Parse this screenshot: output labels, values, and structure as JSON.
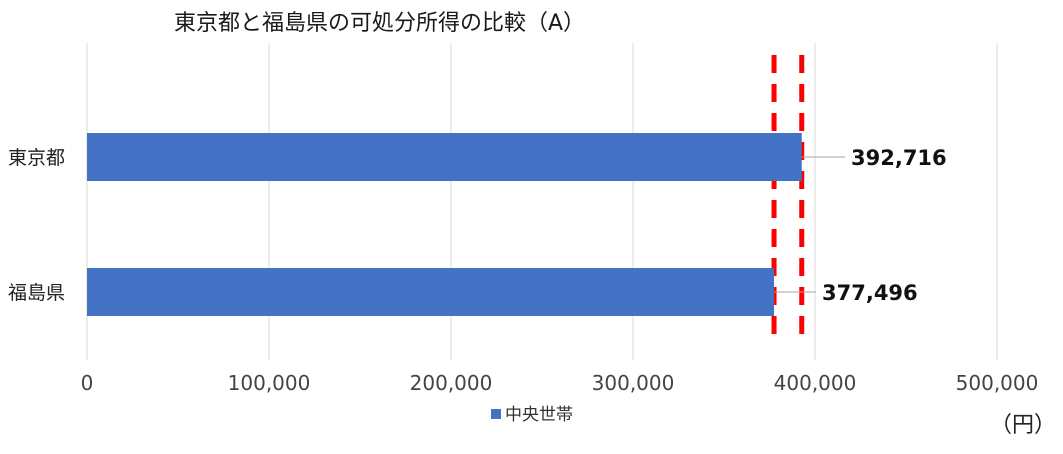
{
  "chart_data": {
    "type": "bar",
    "orientation": "horizontal",
    "title": "東京都と福島県の可処分所得の比較（A）",
    "categories": [
      "東京都",
      "福島県"
    ],
    "series": [
      {
        "name": "中央世帯",
        "values": [
          392716,
          377496
        ]
      }
    ],
    "data_labels": [
      "392,716",
      "377,496"
    ],
    "xlim": [
      0,
      500000
    ],
    "x_ticks": [
      0,
      100000,
      200000,
      300000,
      400000,
      500000
    ],
    "x_tick_labels": [
      "0",
      "100,000",
      "200,000",
      "300,000",
      "400,000",
      "500,000"
    ],
    "unit_label": "（円）",
    "reference_lines": [
      377496,
      392716
    ],
    "grid": true,
    "legend_position": "bottom",
    "colors": {
      "bar": "#4472C4",
      "reference_line": "#FF0000",
      "grid": "#D9D9D9"
    }
  }
}
